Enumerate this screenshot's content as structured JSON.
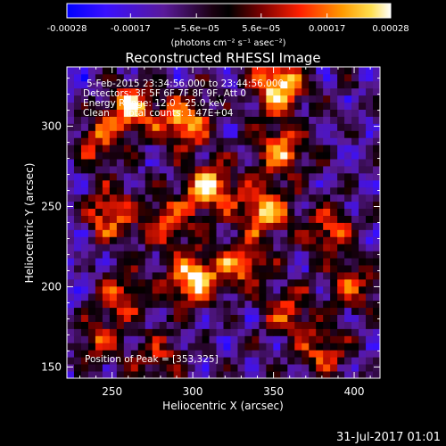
{
  "chart_data": {
    "type": "heatmap",
    "title": "Reconstructed RHESSI Image",
    "xlabel": "Heliocentric X (arcsec)",
    "ylabel": "Heliocentric Y (arcsec)",
    "xlim": [
      222,
      416
    ],
    "ylim": [
      143,
      337
    ],
    "x_ticks": [
      250,
      300,
      350,
      400
    ],
    "y_ticks": [
      150,
      200,
      250,
      300
    ],
    "colorbar": {
      "min": -0.00028,
      "max": 0.00028,
      "tick_values": [
        -0.00028,
        -0.00017,
        -5.6e-05,
        5.6e-05,
        0.00017,
        0.00028
      ],
      "tick_labels": [
        "-0.00028",
        "-0.00017",
        "−5.6e−05",
        "5.6e−05",
        "0.00017",
        "0.00028"
      ],
      "units": "(photons cm⁻² s⁻¹ asec⁻²)"
    },
    "annotations": [
      "5-Feb-2015 23:34:56.000 to 23:44:56.000",
      "Detectors: 3F 5F 6F 7F 8F 9F, Att 0",
      "Energy Range: 12.0 - 25.0 keV",
      "Clean     Total counts: 1.47E+04"
    ],
    "peak_label": "Position of Peak = [353,325]",
    "peak_position": [
      353,
      325
    ],
    "hot_spots": [
      {
        "x": 353,
        "y": 325,
        "amp": 1.0
      },
      {
        "x": 262,
        "y": 311,
        "amp": 0.8
      },
      {
        "x": 295,
        "y": 302,
        "amp": 0.85
      },
      {
        "x": 240,
        "y": 290,
        "amp": 0.55
      },
      {
        "x": 355,
        "y": 285,
        "amp": 0.75
      },
      {
        "x": 310,
        "y": 262,
        "amp": 0.9
      },
      {
        "x": 248,
        "y": 245,
        "amp": 0.7
      },
      {
        "x": 285,
        "y": 240,
        "amp": 0.6
      },
      {
        "x": 345,
        "y": 248,
        "amp": 0.85
      },
      {
        "x": 385,
        "y": 235,
        "amp": 0.6
      },
      {
        "x": 300,
        "y": 205,
        "amp": 0.95
      },
      {
        "x": 330,
        "y": 215,
        "amp": 0.7
      },
      {
        "x": 255,
        "y": 195,
        "amp": 0.55
      },
      {
        "x": 360,
        "y": 185,
        "amp": 0.55
      },
      {
        "x": 400,
        "y": 200,
        "amp": 0.5
      },
      {
        "x": 240,
        "y": 165,
        "amp": 0.5
      },
      {
        "x": 280,
        "y": 155,
        "amp": 0.45
      },
      {
        "x": 380,
        "y": 160,
        "amp": 0.55
      }
    ]
  },
  "footer": {
    "timestamp": "31-Jul-2017 01:01"
  }
}
